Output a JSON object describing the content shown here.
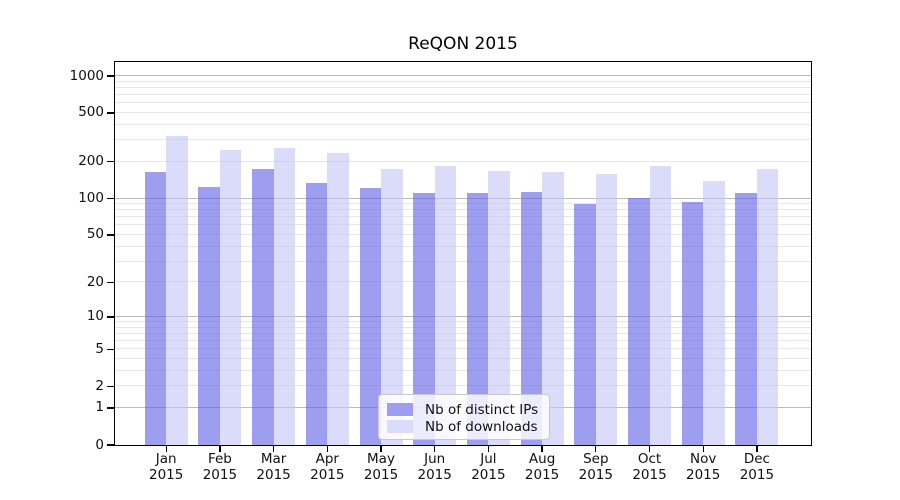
{
  "title": "ReQON 2015",
  "legend": {
    "items": [
      {
        "label": "Nb of distinct IPs",
        "swatch": "#9e9ef1"
      },
      {
        "label": "Nb of downloads",
        "swatch": "#dbdbfa"
      }
    ]
  },
  "y_axis": {
    "tick_labels": [
      "0",
      "1",
      "2",
      "5",
      "10",
      "20",
      "50",
      "100",
      "200",
      "500",
      "1000"
    ]
  },
  "x_axis": {
    "months": [
      "Jan",
      "Feb",
      "Mar",
      "Apr",
      "May",
      "Jun",
      "Jul",
      "Aug",
      "Sep",
      "Oct",
      "Nov",
      "Dec"
    ],
    "year": "2015"
  },
  "chart_data": {
    "type": "bar",
    "title": "ReQON 2015",
    "categories": [
      "Jan 2015",
      "Feb 2015",
      "Mar 2015",
      "Apr 2015",
      "May 2015",
      "Jun 2015",
      "Jul 2015",
      "Aug 2015",
      "Sep 2015",
      "Oct 2015",
      "Nov 2015",
      "Dec 2015"
    ],
    "series": [
      {
        "name": "Nb of distinct IPs",
        "color": "#9e9ef1",
        "fill": "rgba(99,99,232,0.62)",
        "values": [
          165,
          125,
          173,
          135,
          123,
          112,
          110,
          113,
          91,
          101,
          93,
          110
        ]
      },
      {
        "name": "Nb of downloads",
        "color": "#dbdbfa",
        "fill": "rgba(197,197,247,0.62)",
        "values": [
          325,
          250,
          260,
          237,
          175,
          183,
          169,
          164,
          159,
          186,
          140,
          175
        ]
      }
    ],
    "yscale": "log1p",
    "yticks": [
      0,
      1,
      2,
      5,
      10,
      20,
      50,
      100,
      200,
      500,
      1000
    ],
    "ylim": [
      0,
      1300
    ],
    "grid": true,
    "grid_major_color": "#bcbcbc",
    "grid_minor_color": "#e7e7e7",
    "legend_position": "lower center"
  }
}
